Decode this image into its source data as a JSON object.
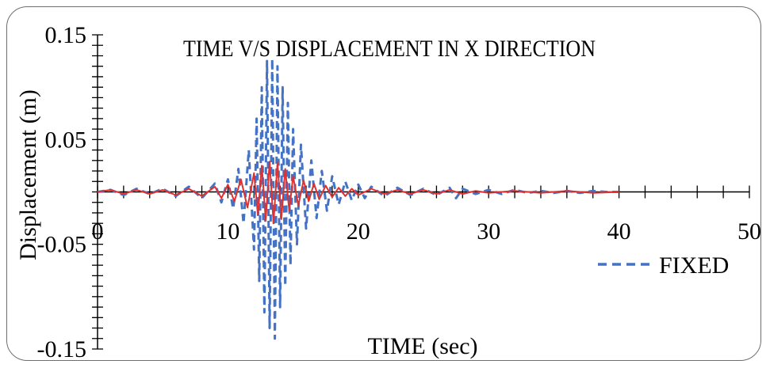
{
  "chart_data": {
    "type": "line",
    "title": "TIME V/S DISPLACEMENT  IN X DIRECTION",
    "xlabel": "TIME (sec)",
    "ylabel": "Displacement  (m)",
    "xlim": [
      0,
      50
    ],
    "ylim": [
      -0.15,
      0.15
    ],
    "x_ticks": [
      0,
      10,
      20,
      30,
      40,
      50
    ],
    "y_tick_labels": [
      0.15,
      0.05,
      -0.05,
      -0.15
    ],
    "x_major_step": 2,
    "y_minor_step": 0.01,
    "grid": false,
    "legend_position": "bottom-right",
    "series": [
      {
        "name": "FIXED",
        "style": "dashed",
        "color": "#4472C4",
        "x": [
          0,
          1,
          2,
          3,
          4,
          5,
          6,
          7,
          8,
          9,
          9.5,
          10,
          10.4,
          10.8,
          11.2,
          11.6,
          12.0,
          12.2,
          12.4,
          12.6,
          12.8,
          13.0,
          13.2,
          13.4,
          13.6,
          13.8,
          14.0,
          14.2,
          14.4,
          14.6,
          14.8,
          15.0,
          15.3,
          15.6,
          16.0,
          16.4,
          16.8,
          17.2,
          17.6,
          18.0,
          18.5,
          19,
          19.5,
          20,
          20.5,
          21,
          22,
          23,
          24,
          25,
          26,
          27,
          27.5,
          28,
          29,
          30,
          31,
          32,
          33,
          34,
          35,
          36,
          37,
          38,
          39,
          40
        ],
        "y": [
          0,
          0.002,
          -0.003,
          0.003,
          -0.002,
          0.003,
          -0.004,
          0.005,
          -0.006,
          0.008,
          -0.01,
          0.012,
          -0.016,
          0.022,
          -0.03,
          0.04,
          -0.055,
          0.07,
          -0.085,
          0.1,
          -0.115,
          0.125,
          -0.13,
          0.127,
          -0.14,
          0.12,
          -0.11,
          0.1,
          -0.09,
          0.085,
          -0.07,
          0.06,
          -0.05,
          0.045,
          -0.035,
          0.03,
          -0.025,
          0.02,
          -0.018,
          0.015,
          -0.012,
          0.01,
          -0.008,
          0.007,
          -0.006,
          0.005,
          -0.004,
          0.004,
          -0.003,
          0.003,
          -0.003,
          0.004,
          -0.006,
          0.003,
          -0.002,
          0.002,
          -0.002,
          0.002,
          -0.001,
          0.001,
          -0.001,
          0.001,
          -0.001,
          0.001,
          0,
          0
        ]
      },
      {
        "style": "solid",
        "color": "#E03030",
        "x": [
          0,
          1,
          2,
          3,
          4,
          5,
          6,
          7,
          8,
          9,
          9.5,
          10,
          10.5,
          11,
          11.5,
          12.0,
          12.3,
          12.6,
          12.9,
          13.2,
          13.5,
          13.8,
          14.1,
          14.4,
          14.7,
          15.0,
          15.4,
          15.8,
          16.2,
          16.6,
          17.0,
          17.5,
          18,
          18.5,
          19,
          19.5,
          20,
          21,
          22,
          23,
          24,
          25,
          26,
          27,
          28,
          29,
          30,
          32,
          34,
          36,
          38,
          40
        ],
        "y": [
          0,
          0.002,
          -0.002,
          0.002,
          -0.002,
          0.002,
          -0.003,
          0.003,
          -0.004,
          0.005,
          -0.006,
          0.007,
          -0.009,
          0.012,
          -0.015,
          0.018,
          -0.022,
          0.025,
          -0.027,
          0.029,
          -0.03,
          0.028,
          -0.026,
          0.022,
          -0.018,
          0.015,
          -0.013,
          0.011,
          -0.009,
          0.008,
          -0.007,
          0.006,
          -0.005,
          0.004,
          -0.004,
          0.003,
          -0.003,
          0.003,
          -0.002,
          0.002,
          -0.002,
          0.002,
          -0.002,
          0.002,
          -0.002,
          0.001,
          -0.001,
          0.001,
          -0.001,
          0.001,
          -0.001,
          0
        ]
      }
    ]
  }
}
